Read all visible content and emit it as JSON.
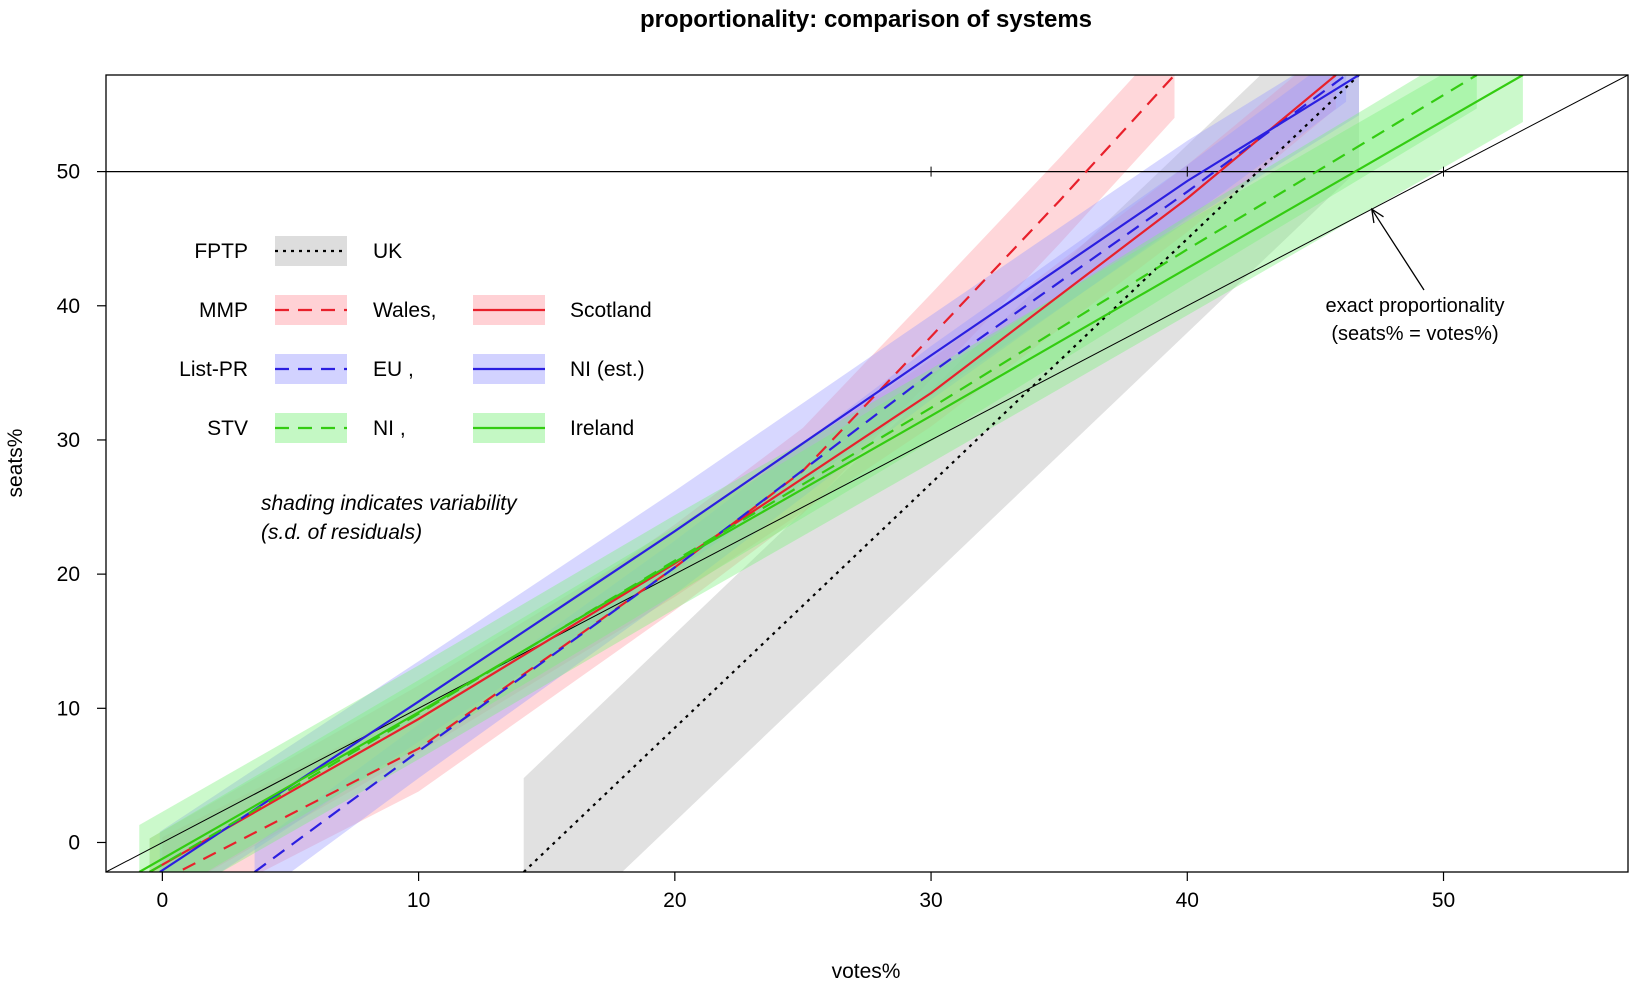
{
  "chart_data": {
    "type": "line",
    "title": "proportionality: comparison of systems",
    "xlabel": "votes%",
    "ylabel": "seats%",
    "xlim": [
      -2.2,
      57.2
    ],
    "ylim": [
      -2.2,
      57.2
    ],
    "xticks": [
      0,
      10,
      20,
      30,
      40,
      50
    ],
    "yticks": [
      0,
      10,
      20,
      30,
      40,
      50
    ],
    "reference_line_y": 50,
    "series": [
      {
        "name": "UK",
        "system": "FPTP",
        "color": "#000000",
        "band_color": "#b3b3b3",
        "dash": "dotted",
        "x": [
          14.1,
          46.7
        ],
        "y": [
          -2.2,
          57.2
        ],
        "sd": 7.0
      },
      {
        "name": "Wales",
        "system": "MMP",
        "color": "#e8202b",
        "band_color": "#ff9aa2",
        "dash": "dashed",
        "x": [
          0.0,
          10,
          20,
          25,
          30,
          35,
          39.5
        ],
        "y": [
          -2.8,
          7.0,
          20.5,
          27.7,
          37.7,
          47.8,
          57.2
        ],
        "sd": 3.2
      },
      {
        "name": "Scotland",
        "system": "MMP",
        "color": "#e8202b",
        "band_color": "#ff9aa2",
        "dash": "solid",
        "x": [
          -0.5,
          10,
          20,
          30,
          40,
          45.8
        ],
        "y": [
          -2.2,
          9.2,
          20.8,
          33.5,
          48.0,
          57.2
        ],
        "sd": 2.5
      },
      {
        "name": "EU",
        "system": "List-PR",
        "color": "#2b1fe0",
        "band_color": "#9b9bff",
        "dash": "dashed",
        "x": [
          3.6,
          10,
          20,
          30,
          40,
          46.2
        ],
        "y": [
          -2.2,
          6.8,
          20.5,
          35.0,
          48.5,
          57.2
        ],
        "sd": 2.0
      },
      {
        "name": "NI (est.)",
        "system": "List-PR",
        "color": "#2b1fe0",
        "band_color": "#9b9bff",
        "dash": "solid",
        "x": [
          -0.1,
          10,
          20,
          30,
          40,
          46.7
        ],
        "y": [
          -2.2,
          10.5,
          23.2,
          36.3,
          49.3,
          57.2
        ],
        "sd": 3.0
      },
      {
        "name": "NI",
        "system": "STV",
        "color": "#33cc11",
        "band_color": "#7cf07c",
        "dash": "dashed",
        "x": [
          -0.5,
          10,
          20,
          30,
          40,
          51.3
        ],
        "y": [
          -2.2,
          9.6,
          21.0,
          32.4,
          44.2,
          57.2
        ],
        "sd": 2.5
      },
      {
        "name": "Ireland",
        "system": "STV",
        "color": "#33cc11",
        "band_color": "#7cf07c",
        "dash": "solid",
        "x": [
          -0.9,
          10,
          20,
          30,
          40,
          53.1
        ],
        "y": [
          -2.2,
          9.7,
          20.9,
          31.8,
          42.8,
          57.2
        ],
        "sd": 3.5
      }
    ],
    "legend": {
      "rows": [
        {
          "system": "FPTP",
          "entries": [
            "UK"
          ]
        },
        {
          "system": "MMP",
          "entries": [
            "Wales,",
            "Scotland"
          ]
        },
        {
          "system": "List-PR",
          "entries": [
            "EU ,",
            "NI (est.)"
          ]
        },
        {
          "system": "STV",
          "entries": [
            "NI ,",
            "Ireland"
          ]
        }
      ]
    },
    "note_lines": [
      "shading indicates variability",
      "(s.d. of residuals)"
    ],
    "annotation": {
      "lines": [
        "exact proportionality",
        "(seats% = votes%)"
      ],
      "target": [
        47.2,
        47.2
      ]
    }
  }
}
